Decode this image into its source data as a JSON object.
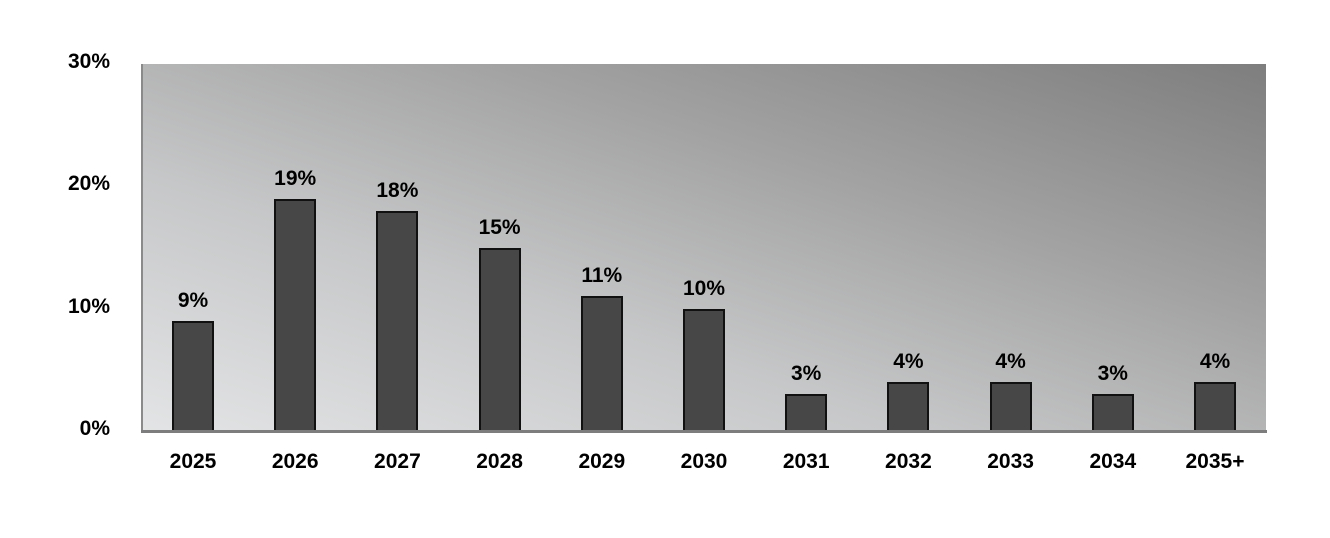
{
  "chart_data": {
    "type": "bar",
    "title": "",
    "xlabel": "",
    "ylabel": "",
    "categories": [
      "2025",
      "2026",
      "2027",
      "2028",
      "2029",
      "2030",
      "2031",
      "2032",
      "2033",
      "2034",
      "2035+"
    ],
    "values": [
      9,
      19,
      18,
      15,
      11,
      10,
      3,
      4,
      4,
      3,
      4
    ],
    "value_labels": [
      "9%",
      "19%",
      "18%",
      "15%",
      "11%",
      "10%",
      "3%",
      "4%",
      "4%",
      "3%",
      "4%"
    ],
    "ylim": [
      0,
      30
    ],
    "y_ticks": [
      "0%",
      "10%",
      "20%",
      "30%"
    ],
    "y_tick_values": [
      0,
      10,
      20,
      30
    ],
    "grid": false,
    "legend": null,
    "colors": {
      "bar_fill": "#474747",
      "bar_border": "#111111",
      "plot_bg_light": "#e3e4e5",
      "plot_bg_dark": "#7e7e7e",
      "axis_line": "#7d7d7d"
    }
  }
}
